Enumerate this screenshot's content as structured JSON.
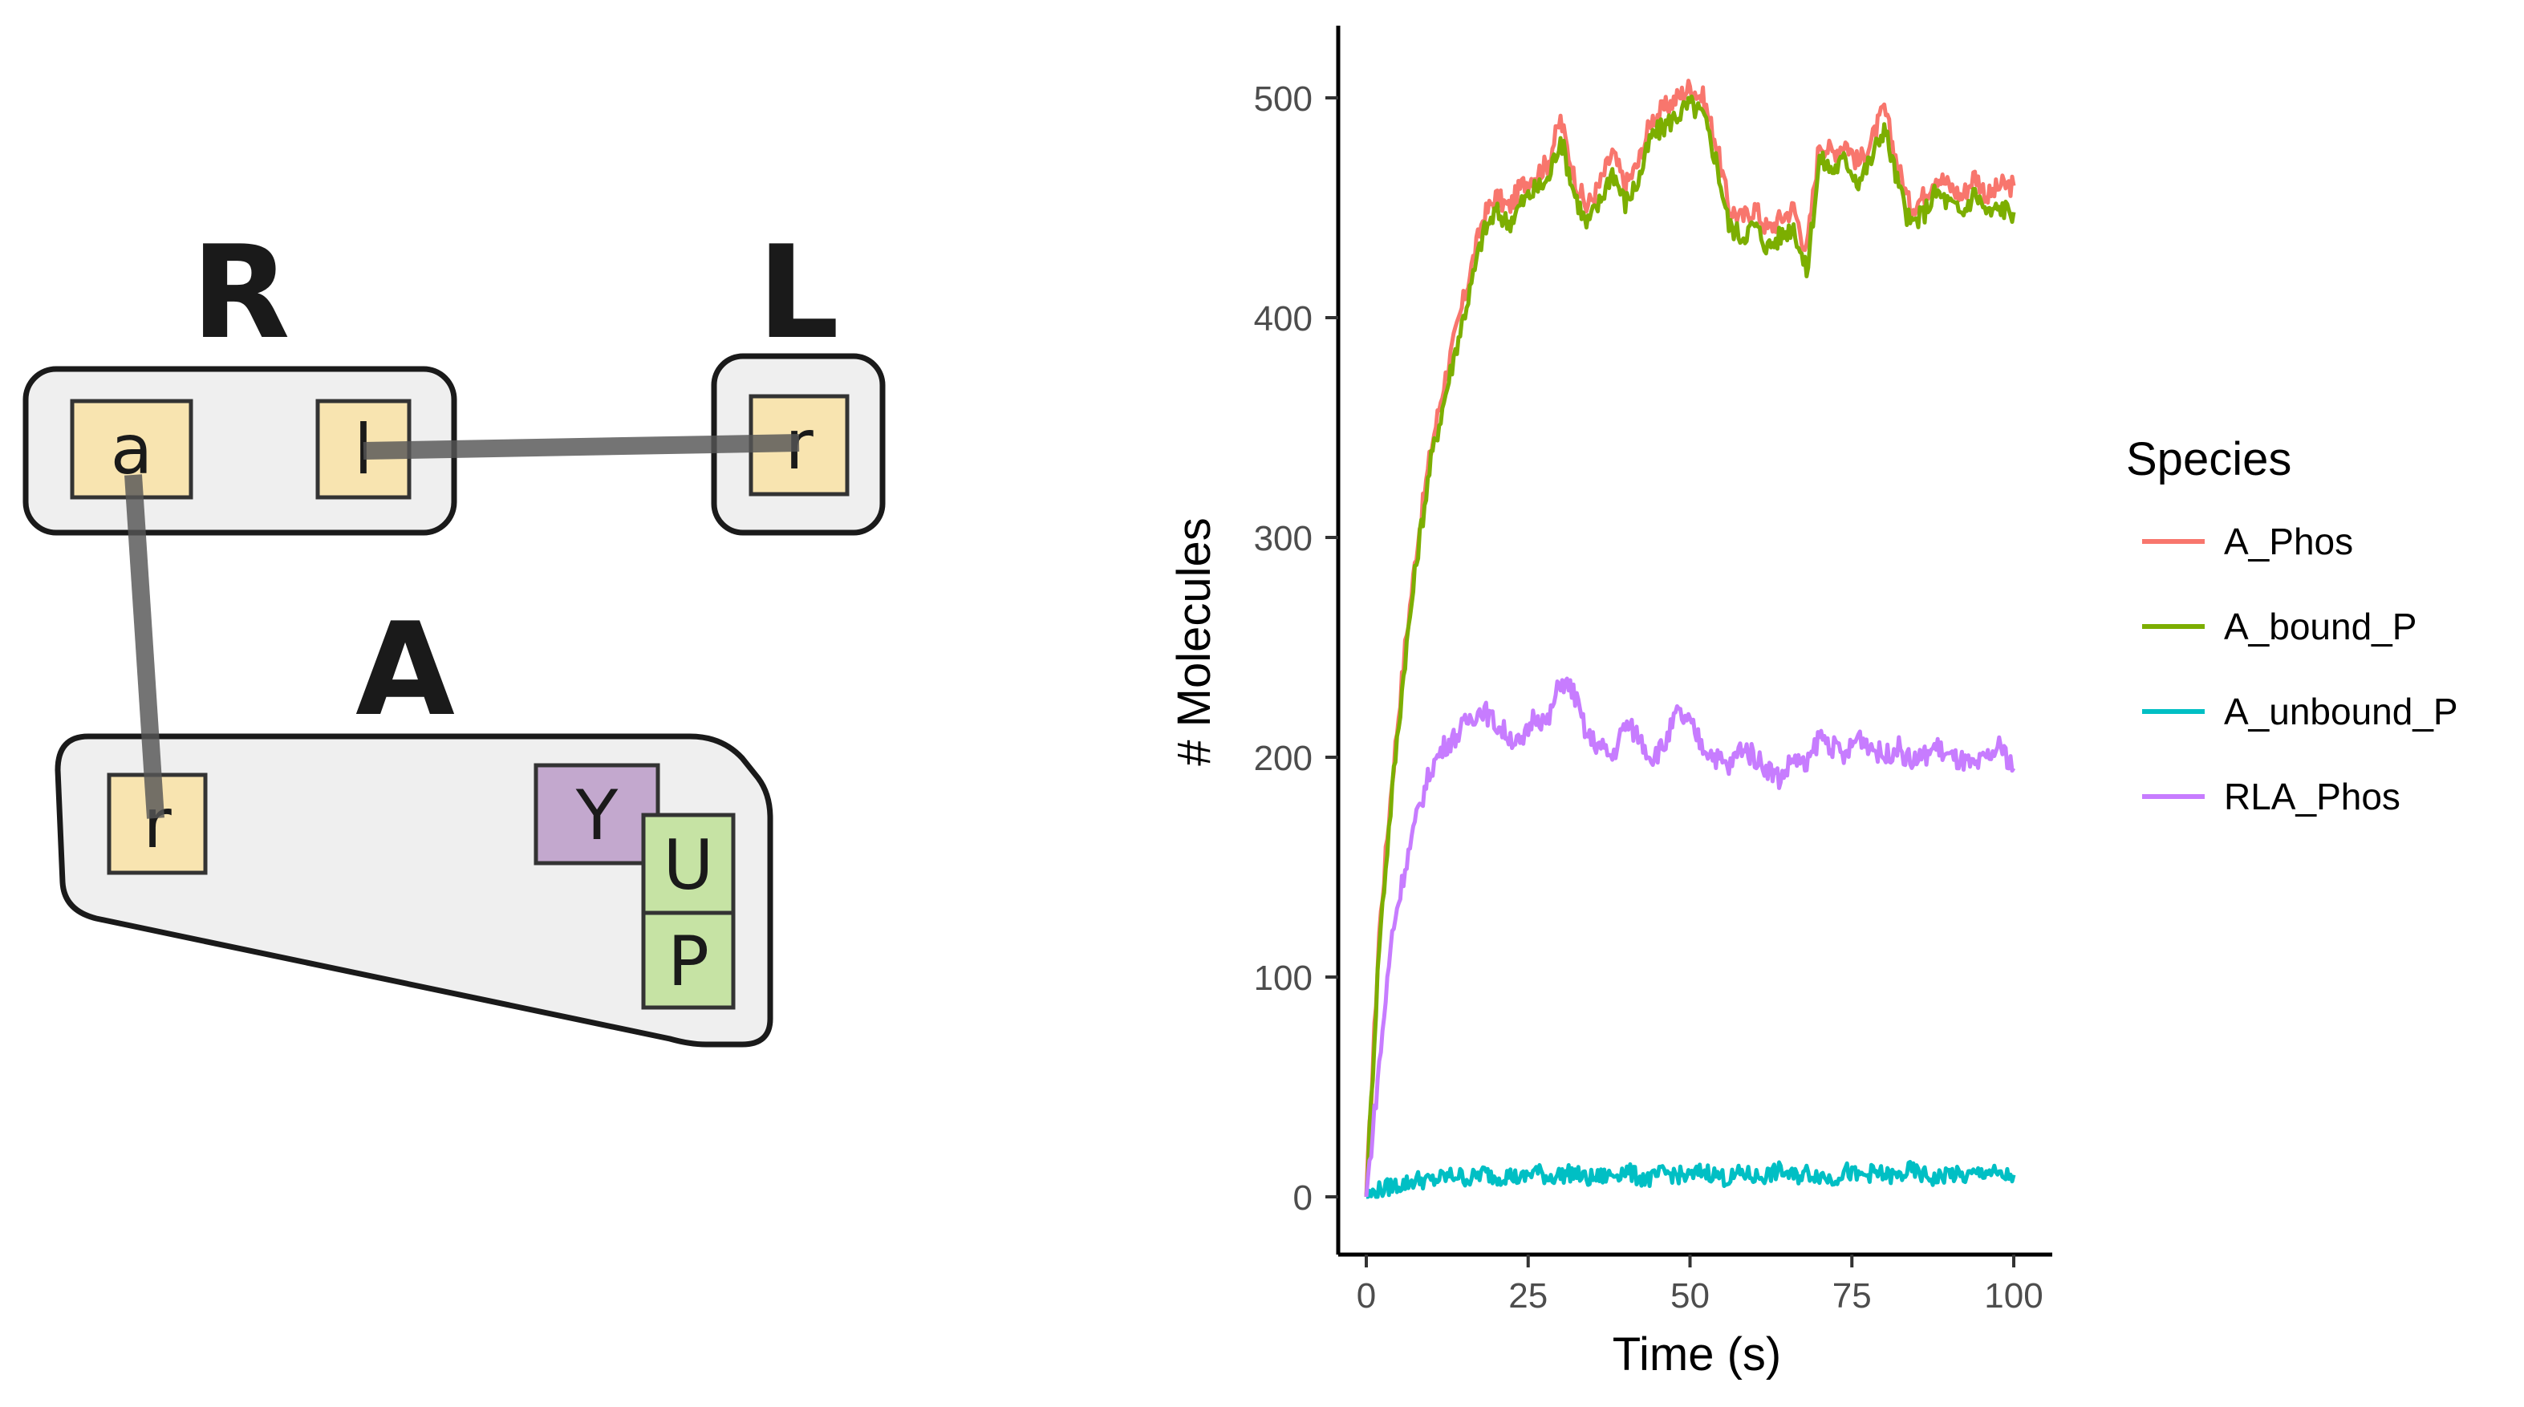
{
  "diagram": {
    "molecules": [
      {
        "name": "R",
        "sites": [
          "a",
          "l"
        ]
      },
      {
        "name": "L",
        "sites": [
          "r"
        ]
      },
      {
        "name": "A",
        "sites": [
          "r",
          "Y",
          "U",
          "P"
        ]
      }
    ]
  },
  "chart_data": {
    "type": "line",
    "xlabel": "Time (s)",
    "ylabel": "# Molecules",
    "xlim": [
      0,
      100
    ],
    "ylim": [
      0,
      520
    ],
    "x_ticks": [
      "0",
      "25",
      "50",
      "75",
      "100"
    ],
    "y_ticks": [
      "0",
      "100",
      "200",
      "300",
      "400",
      "500"
    ],
    "grid": false,
    "legend": {
      "title": "Species",
      "position": "right"
    },
    "x": [
      0,
      2,
      4,
      6,
      8,
      10,
      12,
      14,
      16,
      18,
      20,
      22,
      24,
      26,
      28,
      30,
      32,
      34,
      36,
      38,
      40,
      42,
      44,
      46,
      48,
      50,
      52,
      54,
      56,
      58,
      60,
      62,
      64,
      66,
      68,
      70,
      72,
      74,
      76,
      78,
      80,
      82,
      84,
      86,
      88,
      90,
      92,
      94,
      96,
      98,
      100
    ],
    "series": [
      {
        "name": "A_Phos",
        "color": "#F8766D",
        "values": [
          0,
          120,
          190,
          250,
          300,
          340,
          370,
          395,
          420,
          445,
          455,
          450,
          460,
          465,
          470,
          490,
          465,
          450,
          460,
          475,
          460,
          470,
          490,
          495,
          500,
          505,
          500,
          480,
          450,
          445,
          450,
          440,
          445,
          450,
          430,
          480,
          475,
          480,
          470,
          480,
          495,
          470,
          450,
          455,
          465,
          460,
          455,
          465,
          455,
          460,
          460
        ]
      },
      {
        "name": "A_bound_P",
        "color": "#7CAE00",
        "values": [
          0,
          115,
          185,
          245,
          295,
          335,
          362,
          388,
          412,
          438,
          448,
          443,
          452,
          458,
          462,
          482,
          458,
          442,
          452,
          467,
          452,
          462,
          482,
          487,
          492,
          497,
          492,
          472,
          442,
          437,
          442,
          432,
          437,
          442,
          420,
          472,
          467,
          472,
          462,
          472,
          487,
          462,
          442,
          447,
          457,
          452,
          447,
          457,
          447,
          450,
          448
        ]
      },
      {
        "name": "A_unbound_P",
        "color": "#00BFC4",
        "values": [
          0,
          3,
          5,
          6,
          8,
          7,
          9,
          10,
          8,
          11,
          9,
          10,
          8,
          12,
          9,
          10,
          11,
          8,
          9,
          10,
          12,
          9,
          8,
          11,
          10,
          9,
          12,
          10,
          8,
          11,
          9,
          10,
          12,
          9,
          11,
          10,
          8,
          12,
          9,
          11,
          10,
          9,
          12,
          10,
          8,
          11,
          9,
          10,
          12,
          9,
          10
        ]
      },
      {
        "name": "RLA_Phos",
        "color": "#C77CFF",
        "values": [
          0,
          60,
          120,
          150,
          175,
          195,
          205,
          210,
          218,
          222,
          215,
          210,
          205,
          220,
          215,
          235,
          230,
          210,
          205,
          200,
          215,
          210,
          200,
          205,
          220,
          215,
          205,
          200,
          195,
          205,
          200,
          195,
          190,
          200,
          195,
          210,
          205,
          200,
          210,
          205,
          200,
          205,
          198,
          200,
          205,
          200,
          198,
          195,
          200,
          205,
          195
        ]
      }
    ]
  }
}
